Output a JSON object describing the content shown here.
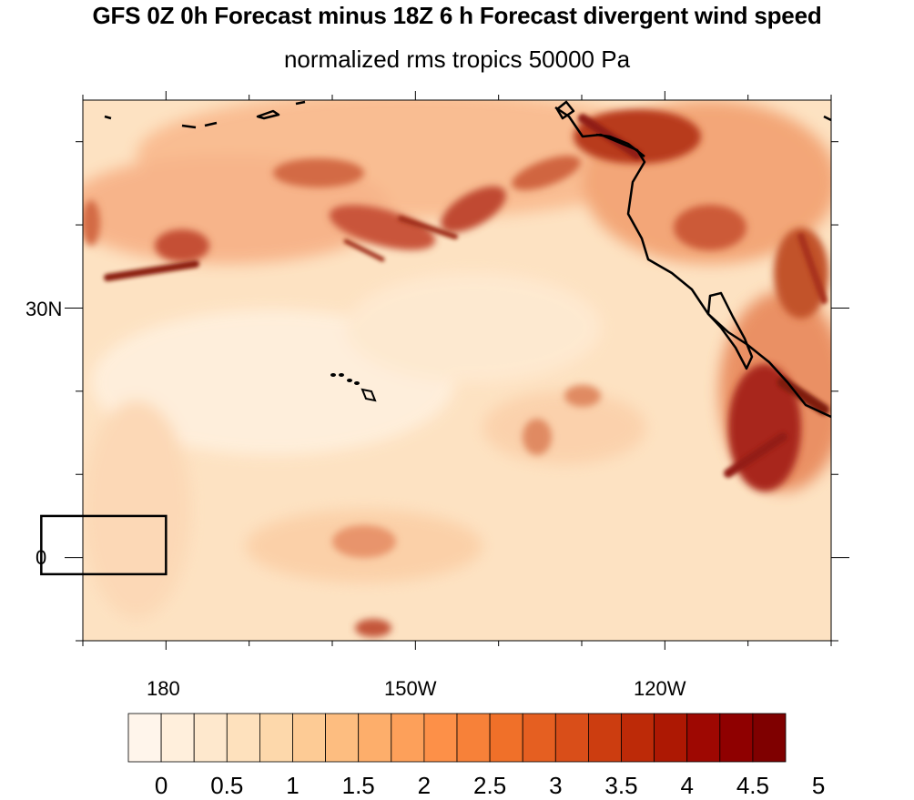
{
  "title": "GFS 0Z 0h Forecast minus 18Z 6 h Forecast divergent wind speed",
  "subtitle": "normalized rms tropics 50000 Pa",
  "map": {
    "projection": "cylindrical-equidistant",
    "lon_range": [
      170,
      260
    ],
    "lat_range": [
      -10,
      55
    ],
    "lat_labels": [
      "30N",
      "0"
    ],
    "lon_labels": [
      "180",
      "150W",
      "120W"
    ],
    "coastlines": true,
    "region_box": {
      "lon": [
        165,
        180
      ],
      "lat": [
        -2,
        5
      ]
    },
    "palette_low": "#fff5eb",
    "palette_high": "#7f0000"
  },
  "colorbar": {
    "levels": [
      "0",
      "0.5",
      "1",
      "1.5",
      "2",
      "2.5",
      "3",
      "3.5",
      "4",
      "4.5",
      "5"
    ],
    "colors": [
      "#fff5eb",
      "#ffefdc",
      "#fee8cd",
      "#fee1bd",
      "#fdd8ab",
      "#fdcb95",
      "#fdbd80",
      "#fdae6b",
      "#fda05a",
      "#fd9048",
      "#f78139",
      "#f07029",
      "#e55f21",
      "#d94e19",
      "#cc3d10",
      "#bd2a08",
      "#ad1803",
      "#9e0802",
      "#8f0000",
      "#7f0000"
    ]
  }
}
